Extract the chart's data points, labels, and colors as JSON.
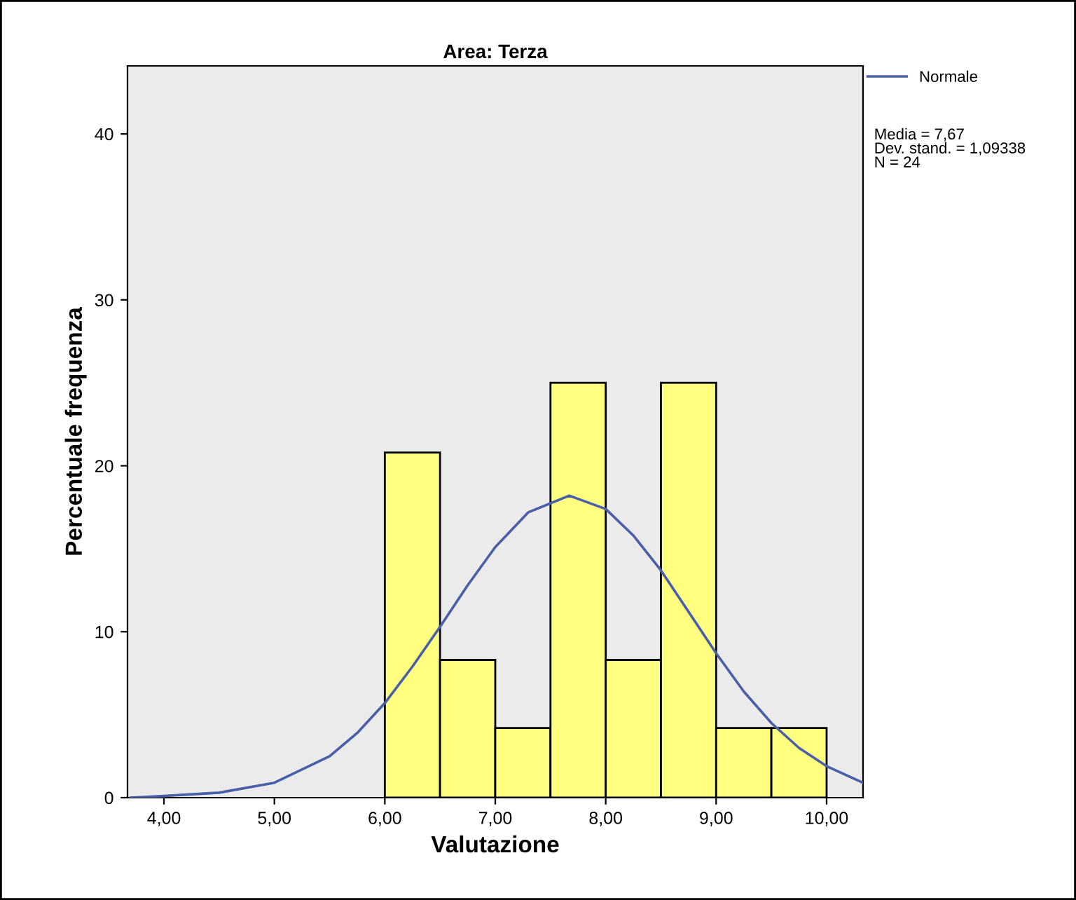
{
  "chart_data": {
    "type": "histogram",
    "title": "Area: Terza",
    "xlabel": "Valutazione",
    "ylabel": "Percentuale frequenza",
    "bins": [
      6.0,
      6.5,
      7.0,
      7.5,
      8.0,
      8.5,
      9.0,
      9.5,
      10.0
    ],
    "values": [
      20.8,
      8.3,
      4.2,
      25,
      8.3,
      25,
      4.2,
      4.2
    ],
    "color": "#ffff80",
    "series": [
      {
        "type": "line",
        "name": "Normale",
        "color": "#4a5fa8",
        "x": [
          3.7,
          4.0,
          4.5,
          5.0,
          5.5,
          5.75,
          6.0,
          6.25,
          6.5,
          6.75,
          7.0,
          7.3,
          7.67,
          8.0,
          8.25,
          8.5,
          8.75,
          9.0,
          9.25,
          9.5,
          9.75,
          10.0,
          10.33
        ],
        "values": [
          0.0,
          0.1,
          0.3,
          0.9,
          2.5,
          3.9,
          5.7,
          7.9,
          10.3,
          12.8,
          15.1,
          17.2,
          18.2,
          17.4,
          15.8,
          13.7,
          11.2,
          8.7,
          6.4,
          4.5,
          3.0,
          1.9,
          0.9
        ]
      }
    ],
    "xlim": [
      3.67,
      10.33
    ],
    "ylim": [
      0,
      44.1
    ],
    "xticks": [
      {
        "value": 4,
        "label": "4,00"
      },
      {
        "value": 5,
        "label": "5,00"
      },
      {
        "value": 6,
        "label": "6,00"
      },
      {
        "value": 7,
        "label": "7,00"
      },
      {
        "value": 8,
        "label": "8,00"
      },
      {
        "value": 9,
        "label": "9,00"
      },
      {
        "value": 10,
        "label": "10,00"
      }
    ],
    "yticks": [
      0,
      10,
      20,
      30,
      40
    ],
    "legend": "top right",
    "annotations": [
      "Media = 7,67\nDev. stand. = 1,09338\nN = 24"
    ]
  }
}
